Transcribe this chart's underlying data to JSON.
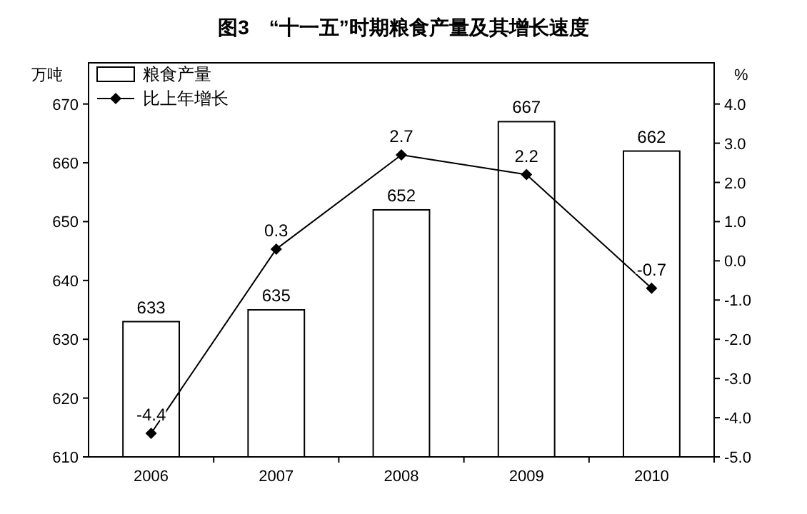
{
  "chart_data": {
    "type": "bar",
    "title": "图3　“十一五”时期粮食产量及其增长速度",
    "ylabel": "万吨",
    "y2label": "%",
    "categories": [
      "2006",
      "2007",
      "2008",
      "2009",
      "2010"
    ],
    "series": [
      {
        "name": "粮食产量",
        "color": "#ffffff",
        "values": [
          633,
          635,
          652,
          667,
          662
        ]
      },
      {
        "name": "比上年增长",
        "type": "line",
        "axis": "y2",
        "color": "#000000",
        "values": [
          -4.4,
          0.3,
          2.7,
          2.2,
          -0.7
        ]
      }
    ],
    "ylim": [
      610,
      677
    ],
    "yticks": [
      610,
      620,
      630,
      640,
      650,
      660,
      670
    ],
    "y2lim": [
      -5,
      5.05
    ],
    "y2ticks": [
      {
        "value": 4,
        "label": "4.0"
      },
      {
        "value": 3,
        "label": "3.0"
      },
      {
        "value": 2,
        "label": "2.0"
      },
      {
        "value": 1,
        "label": "1.0"
      },
      {
        "value": 0,
        "label": "0.0"
      },
      {
        "value": -1,
        "label": "-1.0"
      },
      {
        "value": -2,
        "label": "-2.0"
      },
      {
        "value": -3,
        "label": "-3.0"
      },
      {
        "value": -4,
        "label": "-4.0"
      },
      {
        "value": -5,
        "label": "-5.0"
      }
    ],
    "marker": "diamond",
    "data_labels": true,
    "legend": "top left"
  }
}
